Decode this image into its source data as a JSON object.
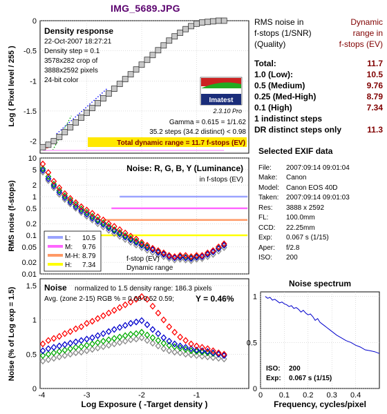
{
  "header": {
    "title": "IMG_5689.JPG"
  },
  "density_panel": {
    "title": "Density response",
    "info_lines": [
      "22-Oct-2007 18:27:21",
      "Density step = 0.1",
      "3578x282 crop of",
      "3888x2592 pixels",
      "24-bit color"
    ],
    "logo_text": "Imatest",
    "version": "2.3.10  Pro",
    "gamma_text": "Gamma = 0.615 = 1/1.62",
    "steps_text": "35.2 steps (34.2 distinct) < 0.98",
    "total_text": "Total dynamic range = 11.7 f-stops (EV)"
  },
  "noise_panel": {
    "title": "Noise: R, G, B, Y (Luminance)",
    "subtitle": "in f-stops (EV)",
    "legend": [
      {
        "key": "L:",
        "value": "10.5",
        "color": "#9aa3ff"
      },
      {
        "key": "M:",
        "value": "9.76",
        "color": "#ff66ff"
      },
      {
        "key": "M-H:",
        "value": "8.79",
        "color": "#ff9966"
      },
      {
        "key": "H:",
        "value": "7.34",
        "color": "#ffff00"
      }
    ],
    "note_line1": "f-stop (EV)",
    "note_line2": "Dynamic range"
  },
  "norm_panel": {
    "title": "Noise",
    "desc1": "normalized to 1.5 density range: 186.3 pixels",
    "desc2": "Avg. (zone 2-15) RGB % = 0.68  0.52  0.59;",
    "ytext": "Y = 0.46%"
  },
  "spectrum_panel": {
    "title": "Noise spectrum",
    "iso_label": "ISO:",
    "iso_value": "200",
    "exp_label": "Exp:",
    "exp_value": "0.067 s  (1/15)"
  },
  "summary": {
    "left_header": [
      "RMS noise in",
      "f-stops (1/SNR)",
      "(Quality)"
    ],
    "right_header": [
      "Dynamic",
      "range in",
      "f-stops (EV)"
    ],
    "rows": [
      {
        "label": "Total:",
        "value": "11.7"
      },
      {
        "label": "1.0   (Low):",
        "value": "10.5"
      },
      {
        "label": "0.5   (Medium)",
        "value": "9.76"
      },
      {
        "label": "0.25 (Med-High)",
        "value": "8.79"
      },
      {
        "label": "0.1   (High)",
        "value": "7.34"
      },
      {
        "label": "1 indistinct steps",
        "value": ""
      },
      {
        "label": "DR distinct steps only",
        "value": "11.3"
      }
    ]
  },
  "exif": {
    "title": "Selected EXIF data",
    "rows": [
      {
        "k": "File:",
        "v": "2007:09:14 09:01:04"
      },
      {
        "k": "Make:",
        "v": "Canon"
      },
      {
        "k": "Model:",
        "v": "Canon EOS 40D"
      },
      {
        "k": "Taken:",
        "v": "2007:09:14 09:01:03"
      },
      {
        "k": "Res:",
        "v": "3888 x 2592"
      },
      {
        "k": "FL:",
        "v": "100.0mm"
      },
      {
        "k": "CCD:",
        "v": "22.25mm"
      },
      {
        "k": "Exp:",
        "v": "0.067 s  (1/15)"
      },
      {
        "k": "Aper:",
        "v": "f/2.8"
      },
      {
        "k": "ISO:",
        "v": "200"
      }
    ]
  },
  "chart_data": [
    {
      "type": "scatter",
      "name": "density",
      "ylabel": "Log ( Pixel level / 255 )",
      "xlim": [
        -3.85,
        -0.05
      ],
      "ylim": [
        -2.2,
        0
      ],
      "yticks": [
        0,
        -0.5,
        -1,
        -1.5,
        -2
      ],
      "x": [
        -3.8,
        -3.7,
        -3.6,
        -3.5,
        -3.4,
        -3.3,
        -3.2,
        -3.1,
        -3.0,
        -2.9,
        -2.8,
        -2.7,
        -2.6,
        -2.5,
        -2.4,
        -2.3,
        -2.2,
        -2.1,
        -2.0,
        -1.9,
        -1.8,
        -1.7,
        -1.6,
        -1.5,
        -1.4,
        -1.3,
        -1.2,
        -1.1,
        -1.0,
        -0.9,
        -0.8,
        -0.7,
        -0.6,
        -0.5
      ],
      "y": [
        -2.1,
        -2.06,
        -2.0,
        -1.93,
        -1.85,
        -1.77,
        -1.69,
        -1.61,
        -1.53,
        -1.45,
        -1.37,
        -1.29,
        -1.21,
        -1.13,
        -1.05,
        -0.97,
        -0.89,
        -0.81,
        -0.73,
        -0.65,
        -0.57,
        -0.49,
        -0.41,
        -0.33,
        -0.26,
        -0.2,
        -0.14,
        -0.09,
        -0.05,
        -0.03,
        -0.02,
        -0.01,
        0,
        0
      ],
      "colors": {
        "marker": "#c8c8c8",
        "gamma_line": "#0000ff",
        "alt_line": "#00aa00",
        "total": "#800000"
      }
    },
    {
      "type": "line",
      "name": "noise_fstops",
      "ylabel": "RMS noise (f-stops)",
      "yscale": "log",
      "ylim": [
        0.01,
        10
      ],
      "yticks": [
        10,
        5,
        2,
        1,
        0.5,
        0.2,
        0.1,
        0.05,
        0.02,
        0.01
      ],
      "thresholds": [
        1.0,
        0.5,
        0.25,
        0.1
      ],
      "x": [
        -3.8,
        -3.7,
        -3.6,
        -3.5,
        -3.4,
        -3.3,
        -3.2,
        -3.1,
        -3.0,
        -2.9,
        -2.8,
        -2.7,
        -2.6,
        -2.5,
        -2.4,
        -2.3,
        -2.2,
        -2.1,
        -2.0,
        -1.9,
        -1.8,
        -1.7,
        -1.6,
        -1.5,
        -1.4,
        -1.3,
        -1.2,
        -1.1,
        -1.0,
        -0.9,
        -0.8,
        -0.7,
        -0.6,
        -0.5
      ],
      "series": [
        {
          "values": [
            7,
            4.2,
            2.5,
            1.7,
            1.2,
            0.9,
            0.7,
            0.55,
            0.45,
            0.37,
            0.3,
            0.25,
            0.2,
            0.17,
            0.14,
            0.115,
            0.095,
            0.08,
            0.065,
            0.055,
            0.046,
            0.04,
            0.035,
            0.03,
            0.028,
            0.03,
            0.03,
            0.028,
            0.03,
            0.03,
            0.035,
            0.04,
            0.05,
            0.06
          ],
          "color": "#ff0000"
        },
        {
          "values": [
            4.8,
            2.9,
            1.9,
            1.3,
            0.95,
            0.72,
            0.55,
            0.43,
            0.35,
            0.28,
            0.23,
            0.19,
            0.155,
            0.13,
            0.108,
            0.09,
            0.076,
            0.065,
            0.055,
            0.047,
            0.042,
            0.036,
            0.032,
            0.028,
            0.026,
            0.027,
            0.026,
            0.025,
            0.027,
            0.028,
            0.032,
            0.037,
            0.045,
            0.055
          ],
          "color": "#0000cc"
        },
        {
          "values": [
            5.3,
            3.3,
            2.1,
            1.45,
            1.05,
            0.8,
            0.62,
            0.48,
            0.39,
            0.31,
            0.25,
            0.21,
            0.17,
            0.14,
            0.118,
            0.098,
            0.082,
            0.07,
            0.059,
            0.05,
            0.044,
            0.038,
            0.034,
            0.03,
            0.027,
            0.028,
            0.027,
            0.026,
            0.028,
            0.029,
            0.033,
            0.038,
            0.046,
            0.056
          ],
          "color": "#00aa00"
        },
        {
          "values": [
            4.3,
            2.6,
            1.7,
            1.15,
            0.85,
            0.65,
            0.5,
            0.39,
            0.31,
            0.25,
            0.2,
            0.165,
            0.135,
            0.112,
            0.094,
            0.078,
            0.066,
            0.056,
            0.048,
            0.041,
            0.036,
            0.031,
            0.028,
            0.025,
            0.023,
            0.024,
            0.023,
            0.022,
            0.024,
            0.025,
            0.028,
            0.032,
            0.039,
            0.048
          ],
          "color": "#888888"
        }
      ]
    },
    {
      "type": "line",
      "name": "noise_percent",
      "ylabel": "Noise (% of Log exp = 1.5)",
      "xlabel": "Log Exposure ( -Target density )",
      "xlim": [
        -3.85,
        -0.05
      ],
      "ylim": [
        0,
        1.6
      ],
      "xticks": [
        -3,
        -2,
        -1
      ],
      "yticks": [
        1.5,
        1,
        0.5,
        0
      ],
      "x": [
        -3.8,
        -3.7,
        -3.6,
        -3.5,
        -3.4,
        -3.3,
        -3.2,
        -3.1,
        -3.0,
        -2.9,
        -2.8,
        -2.7,
        -2.6,
        -2.5,
        -2.4,
        -2.3,
        -2.2,
        -2.1,
        -2.0,
        -1.9,
        -1.8,
        -1.7,
        -1.6,
        -1.5,
        -1.4,
        -1.3,
        -1.2,
        -1.1,
        -1.0,
        -0.9,
        -0.8,
        -0.7,
        -0.6,
        -0.5
      ],
      "series": [
        {
          "values": [
            0.65,
            0.7,
            0.73,
            0.76,
            0.8,
            0.83,
            0.87,
            0.9,
            0.95,
            0.98,
            1.02,
            1.06,
            1.1,
            1.14,
            1.18,
            1.22,
            1.26,
            1.3,
            1.34,
            1.3,
            1.2,
            1.1,
            1.0,
            0.9,
            0.82,
            0.75,
            0.7,
            0.65,
            0.62,
            0.6,
            0.58,
            0.55,
            0.52,
            0.5
          ],
          "color": "#ff0000"
        },
        {
          "values": [
            0.55,
            0.58,
            0.6,
            0.62,
            0.64,
            0.66,
            0.68,
            0.7,
            0.72,
            0.74,
            0.77,
            0.8,
            0.83,
            0.86,
            0.89,
            0.92,
            0.95,
            0.97,
            0.99,
            0.93,
            0.86,
            0.8,
            0.74,
            0.69,
            0.65,
            0.62,
            0.6,
            0.58,
            0.56,
            0.55,
            0.54,
            0.52,
            0.5,
            0.48
          ],
          "color": "#0000cc"
        },
        {
          "values": [
            0.48,
            0.5,
            0.52,
            0.54,
            0.56,
            0.58,
            0.6,
            0.61,
            0.63,
            0.65,
            0.67,
            0.69,
            0.71,
            0.73,
            0.75,
            0.77,
            0.79,
            0.8,
            0.82,
            0.78,
            0.74,
            0.7,
            0.66,
            0.63,
            0.61,
            0.59,
            0.57,
            0.55,
            0.54,
            0.53,
            0.52,
            0.51,
            0.5,
            0.49
          ],
          "color": "#00aa00"
        },
        {
          "values": [
            0.4,
            0.42,
            0.44,
            0.46,
            0.48,
            0.5,
            0.52,
            0.53,
            0.55,
            0.57,
            0.59,
            0.61,
            0.63,
            0.65,
            0.67,
            0.69,
            0.71,
            0.72,
            0.74,
            0.7,
            0.66,
            0.62,
            0.58,
            0.55,
            0.53,
            0.52,
            0.5,
            0.49,
            0.48,
            0.47,
            0.46,
            0.45,
            0.44,
            0.43
          ],
          "color": "#888888"
        }
      ]
    },
    {
      "type": "line",
      "name": "noise_spectrum",
      "title": "Noise spectrum",
      "xlabel": "Frequency, cycles/pixel",
      "xlim": [
        0,
        0.5
      ],
      "ylim": [
        0,
        1.05
      ],
      "xticks": [
        0,
        0.1,
        0.2,
        0.3,
        0.4
      ],
      "yticks": [
        1,
        0.5,
        0
      ],
      "x": [
        0.02,
        0.03,
        0.04,
        0.05,
        0.06,
        0.07,
        0.08,
        0.09,
        0.1,
        0.11,
        0.12,
        0.13,
        0.14,
        0.15,
        0.16,
        0.17,
        0.18,
        0.19,
        0.2,
        0.21,
        0.22,
        0.23,
        0.24,
        0.25,
        0.26,
        0.27,
        0.28,
        0.29,
        0.3,
        0.32,
        0.34,
        0.36,
        0.38,
        0.4,
        0.42,
        0.44,
        0.46,
        0.48,
        0.5
      ],
      "y": [
        1.0,
        0.98,
        0.99,
        0.96,
        0.97,
        0.95,
        0.93,
        0.94,
        0.92,
        0.91,
        0.89,
        0.9,
        0.87,
        0.88,
        0.86,
        0.83,
        0.85,
        0.82,
        0.8,
        0.81,
        0.78,
        0.74,
        0.76,
        0.72,
        0.7,
        0.68,
        0.66,
        0.64,
        0.62,
        0.58,
        0.55,
        0.52,
        0.5,
        0.47,
        0.45,
        0.42,
        0.41,
        0.4,
        0.38
      ],
      "colors": {
        "line": "#0000cc"
      }
    }
  ]
}
